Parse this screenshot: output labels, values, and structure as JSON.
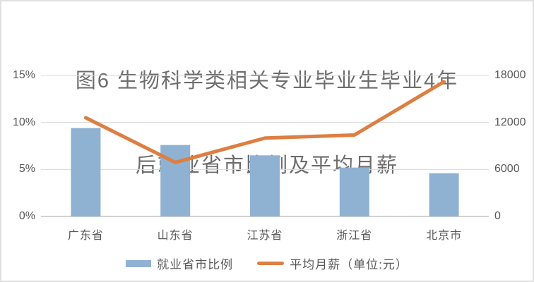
{
  "title": {
    "line1": "图6 生物科学类相关专业毕业生毕业4年",
    "line2": "后就业省市比例及平均月薪"
  },
  "colors": {
    "bar": "#8fb2d3",
    "line": "#dd7e42",
    "grid": "#d9d9d9",
    "baseline": "#c3c3c3",
    "text": "#595959",
    "title_text": "#6d6d6d",
    "border": "#e0e0e0",
    "background": "#ffffff"
  },
  "chart_data": {
    "type": "bar",
    "subtype": "combo-bar-line-dual-axis",
    "title": "图6 生物科学类相关专业毕业生毕业4年后就业省市比例及平均月薪",
    "categories": [
      "广东省",
      "山东省",
      "江苏省",
      "浙江省",
      "北京市"
    ],
    "series": [
      {
        "name": "就业省市比例",
        "type": "bar",
        "axis": "left",
        "unit": "%",
        "values": [
          9.4,
          7.6,
          6.5,
          5.2,
          4.6
        ]
      },
      {
        "name": "平均月薪（单位:元）",
        "type": "line",
        "axis": "right",
        "unit": "元",
        "values": [
          12600,
          6900,
          10000,
          10400,
          17200
        ]
      }
    ],
    "left_axis": {
      "min": 0,
      "max": 15,
      "tick_values": [
        15,
        10,
        5,
        0
      ],
      "tick_labels": [
        "15%",
        "10%",
        "5%",
        "0%"
      ]
    },
    "right_axis": {
      "min": 0,
      "max": 18000,
      "tick_values": [
        18000,
        12000,
        6000,
        0
      ],
      "tick_labels": [
        "18000",
        "12000",
        "6000",
        "0"
      ]
    },
    "grid": true,
    "legend_position": "bottom"
  },
  "legend": {
    "bar_label": "就业省市比例",
    "line_label": "平均月薪（单位:元）"
  }
}
